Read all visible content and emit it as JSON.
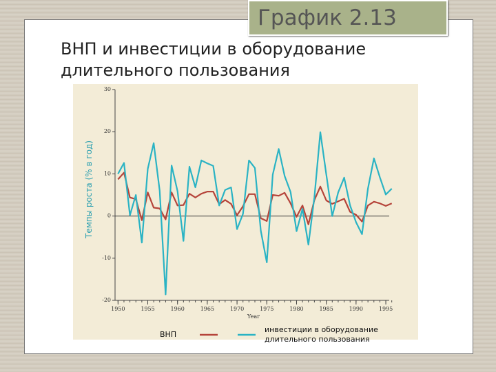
{
  "slide_badge": "График 2.13",
  "heading": "ВНП и инвестиции в оборудование длительного пользования",
  "chart_data": {
    "type": "line",
    "y_label": "Темпы роста (% в год)",
    "x_label": "Year",
    "x": [
      1950,
      1951,
      1952,
      1953,
      1954,
      1955,
      1956,
      1957,
      1958,
      1959,
      1960,
      1961,
      1962,
      1963,
      1964,
      1965,
      1966,
      1967,
      1968,
      1969,
      1970,
      1971,
      1972,
      1973,
      1974,
      1975,
      1976,
      1977,
      1978,
      1979,
      1980,
      1981,
      1982,
      1983,
      1984,
      1985,
      1986,
      1987,
      1988,
      1989,
      1990,
      1991,
      1992,
      1993,
      1994,
      1995,
      1996
    ],
    "xlim": [
      1949.5,
      1996.5
    ],
    "xticks": [
      1950,
      1955,
      1960,
      1965,
      1970,
      1975,
      1980,
      1985,
      1990,
      1995
    ],
    "ylim": [
      -20,
      30
    ],
    "yticks": [
      30,
      20,
      10,
      0,
      -10,
      -20
    ],
    "series": [
      {
        "name": "ВНП",
        "color": "#b5443a",
        "values": [
          8.7,
          10.3,
          4.4,
          4.0,
          -1.0,
          5.6,
          2.0,
          1.8,
          -0.8,
          5.6,
          2.5,
          2.6,
          5.3,
          4.4,
          5.3,
          5.8,
          5.8,
          2.8,
          3.8,
          2.9,
          0.2,
          2.3,
          5.2,
          5.2,
          -0.5,
          -1.2,
          5.0,
          4.8,
          5.5,
          3.0,
          -0.2,
          2.5,
          -2.0,
          3.8,
          7.0,
          3.7,
          2.9,
          3.5,
          4.1,
          1.0,
          0.3,
          -1.3,
          2.5,
          3.4,
          3.0,
          2.4,
          3.0
        ]
      },
      {
        "name": "инвестиции в оборудование длительного пользования",
        "color": "#2ab3c4",
        "values": [
          10.0,
          12.6,
          0.2,
          5.0,
          -6.3,
          11.2,
          17.3,
          6.0,
          -18.6,
          12.0,
          5.9,
          -5.9,
          11.7,
          6.8,
          13.2,
          12.5,
          11.9,
          2.5,
          6.2,
          6.8,
          -3.1,
          0.5,
          13.2,
          11.4,
          -3.5,
          -11.0,
          9.8,
          15.9,
          9.5,
          5.7,
          -3.6,
          1.7,
          -6.8,
          4.5,
          19.9,
          9.8,
          0.0,
          5.6,
          9.1,
          2.5,
          -1.5,
          -4.3,
          6.5,
          13.7,
          9.2,
          5.1,
          6.5
        ]
      }
    ]
  }
}
